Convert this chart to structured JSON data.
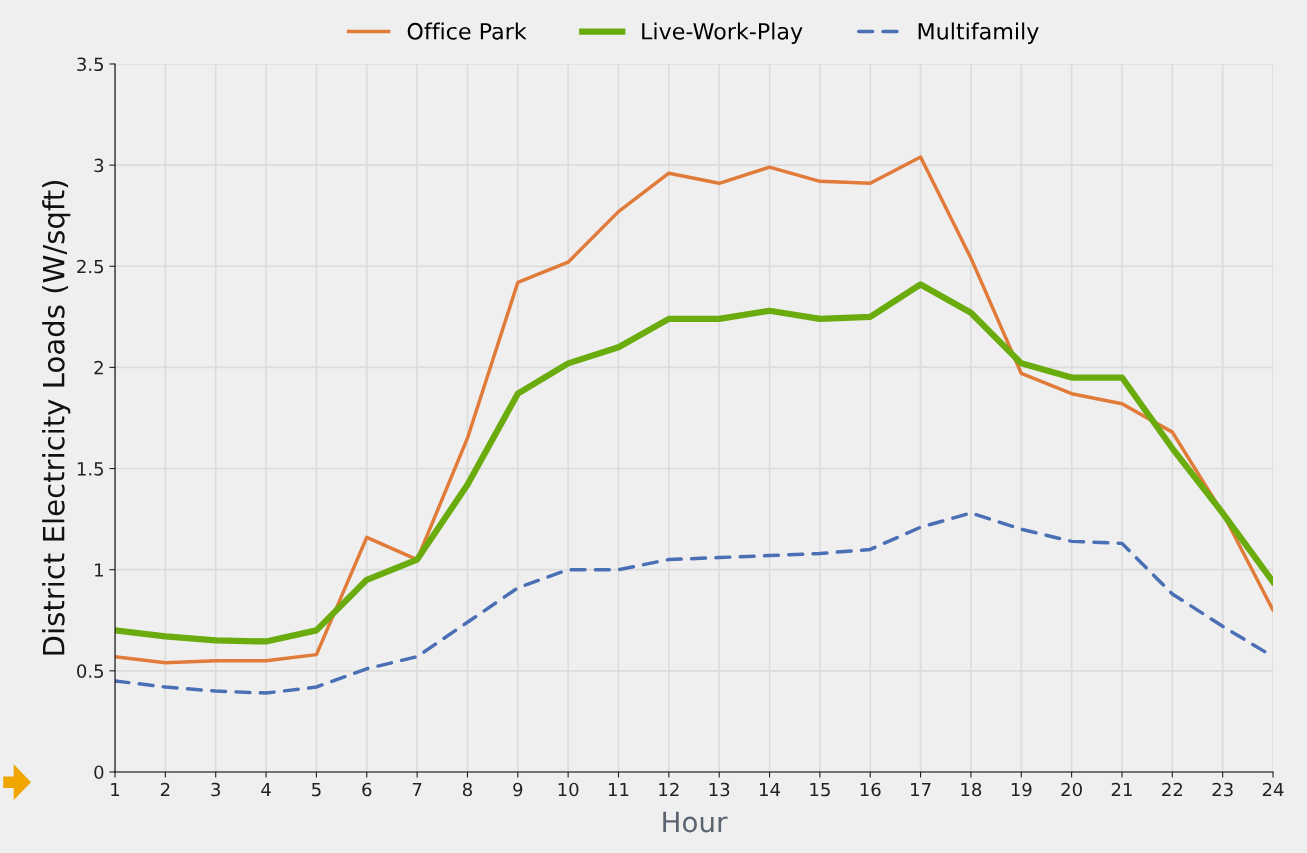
{
  "chart_data": {
    "type": "line",
    "xlabel": "Hour",
    "ylabel": "District Electricity Loads (W/sqft)",
    "x": [
      1,
      2,
      3,
      4,
      5,
      6,
      7,
      8,
      9,
      10,
      11,
      12,
      13,
      14,
      15,
      16,
      17,
      18,
      19,
      20,
      21,
      22,
      23,
      24
    ],
    "xlim": [
      1,
      24
    ],
    "xticks": [
      1,
      2,
      3,
      4,
      5,
      6,
      7,
      8,
      9,
      10,
      11,
      12,
      13,
      14,
      15,
      16,
      17,
      18,
      19,
      20,
      21,
      22,
      23,
      24
    ],
    "ylim": [
      0,
      3.5
    ],
    "yticks": [
      0,
      0.5,
      1,
      1.5,
      2,
      2.5,
      3,
      3.5
    ],
    "grid": true,
    "legend": "top",
    "marker": "none",
    "series": [
      {
        "name": "Office Park",
        "color": "#e07b39",
        "line_style": "solid",
        "values": [
          0.57,
          0.54,
          0.55,
          0.55,
          0.58,
          1.16,
          1.05,
          1.65,
          2.42,
          2.52,
          2.77,
          2.96,
          2.91,
          2.99,
          2.92,
          2.91,
          3.04,
          2.54,
          1.97,
          1.87,
          1.82,
          1.68,
          1.28,
          0.8
        ]
      },
      {
        "name": "Live-Work-Play",
        "color": "#6aab0e",
        "line_style": "solid",
        "values": [
          0.7,
          0.67,
          0.65,
          0.645,
          0.7,
          0.95,
          1.05,
          1.42,
          1.87,
          2.02,
          2.1,
          2.24,
          2.24,
          2.28,
          2.24,
          2.25,
          2.41,
          2.27,
          2.02,
          1.95,
          1.95,
          1.6,
          1.28,
          0.94
        ]
      },
      {
        "name": "Multifamily",
        "color": "#4a6fb5",
        "line_style": "dashed",
        "values": [
          0.45,
          0.42,
          0.4,
          0.39,
          0.42,
          0.51,
          0.57,
          0.74,
          0.91,
          1.0,
          1.0,
          1.05,
          1.06,
          1.07,
          1.08,
          1.1,
          1.21,
          1.28,
          1.2,
          1.14,
          1.13,
          0.88,
          0.72,
          0.57
        ]
      }
    ]
  }
}
